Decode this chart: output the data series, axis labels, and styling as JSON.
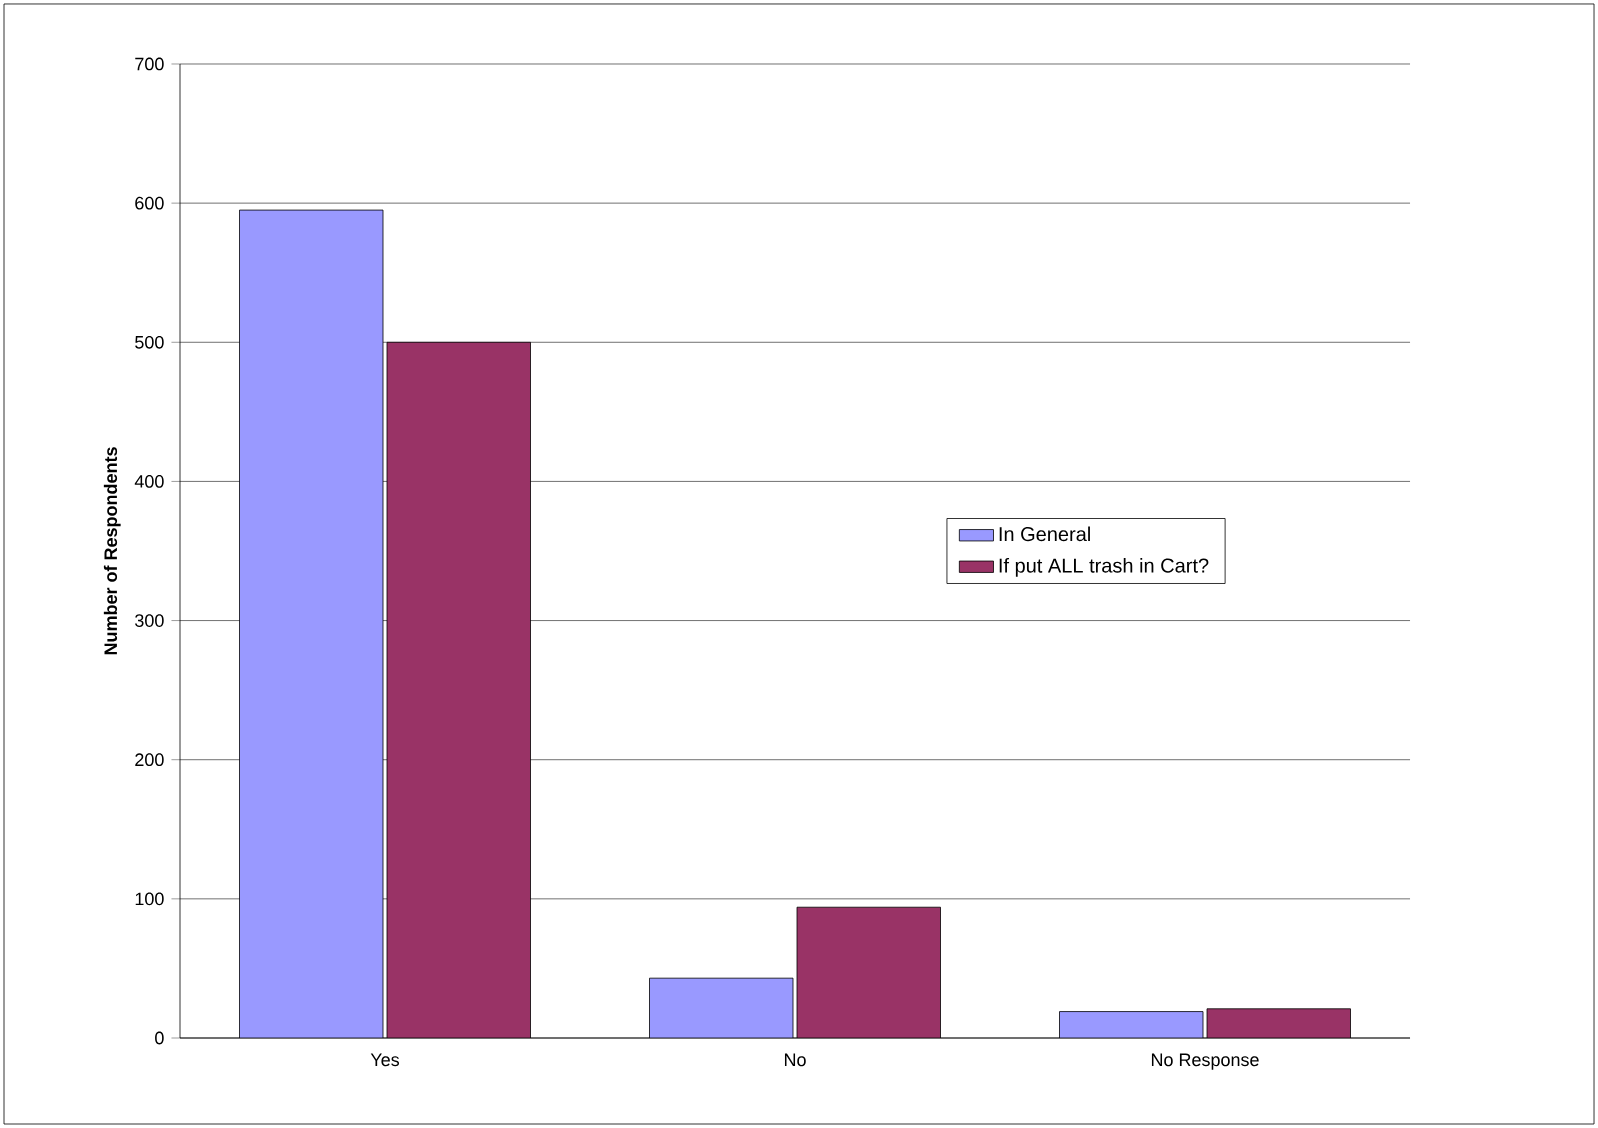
{
  "chart_data": {
    "type": "bar",
    "ylabel": "Number of Respondents",
    "categories": [
      "Yes",
      "No",
      "No Response"
    ],
    "series": [
      {
        "name": "In General",
        "color": "#9999ff",
        "values": [
          595,
          43,
          19
        ]
      },
      {
        "name": "If put ALL trash in Cart?",
        "color": "#993366",
        "values": [
          500,
          94,
          21
        ]
      }
    ],
    "ylim": [
      0,
      700
    ],
    "yticks": [
      0,
      100,
      200,
      300,
      400,
      500,
      600,
      700
    ],
    "grid": "y",
    "legend": "right"
  }
}
